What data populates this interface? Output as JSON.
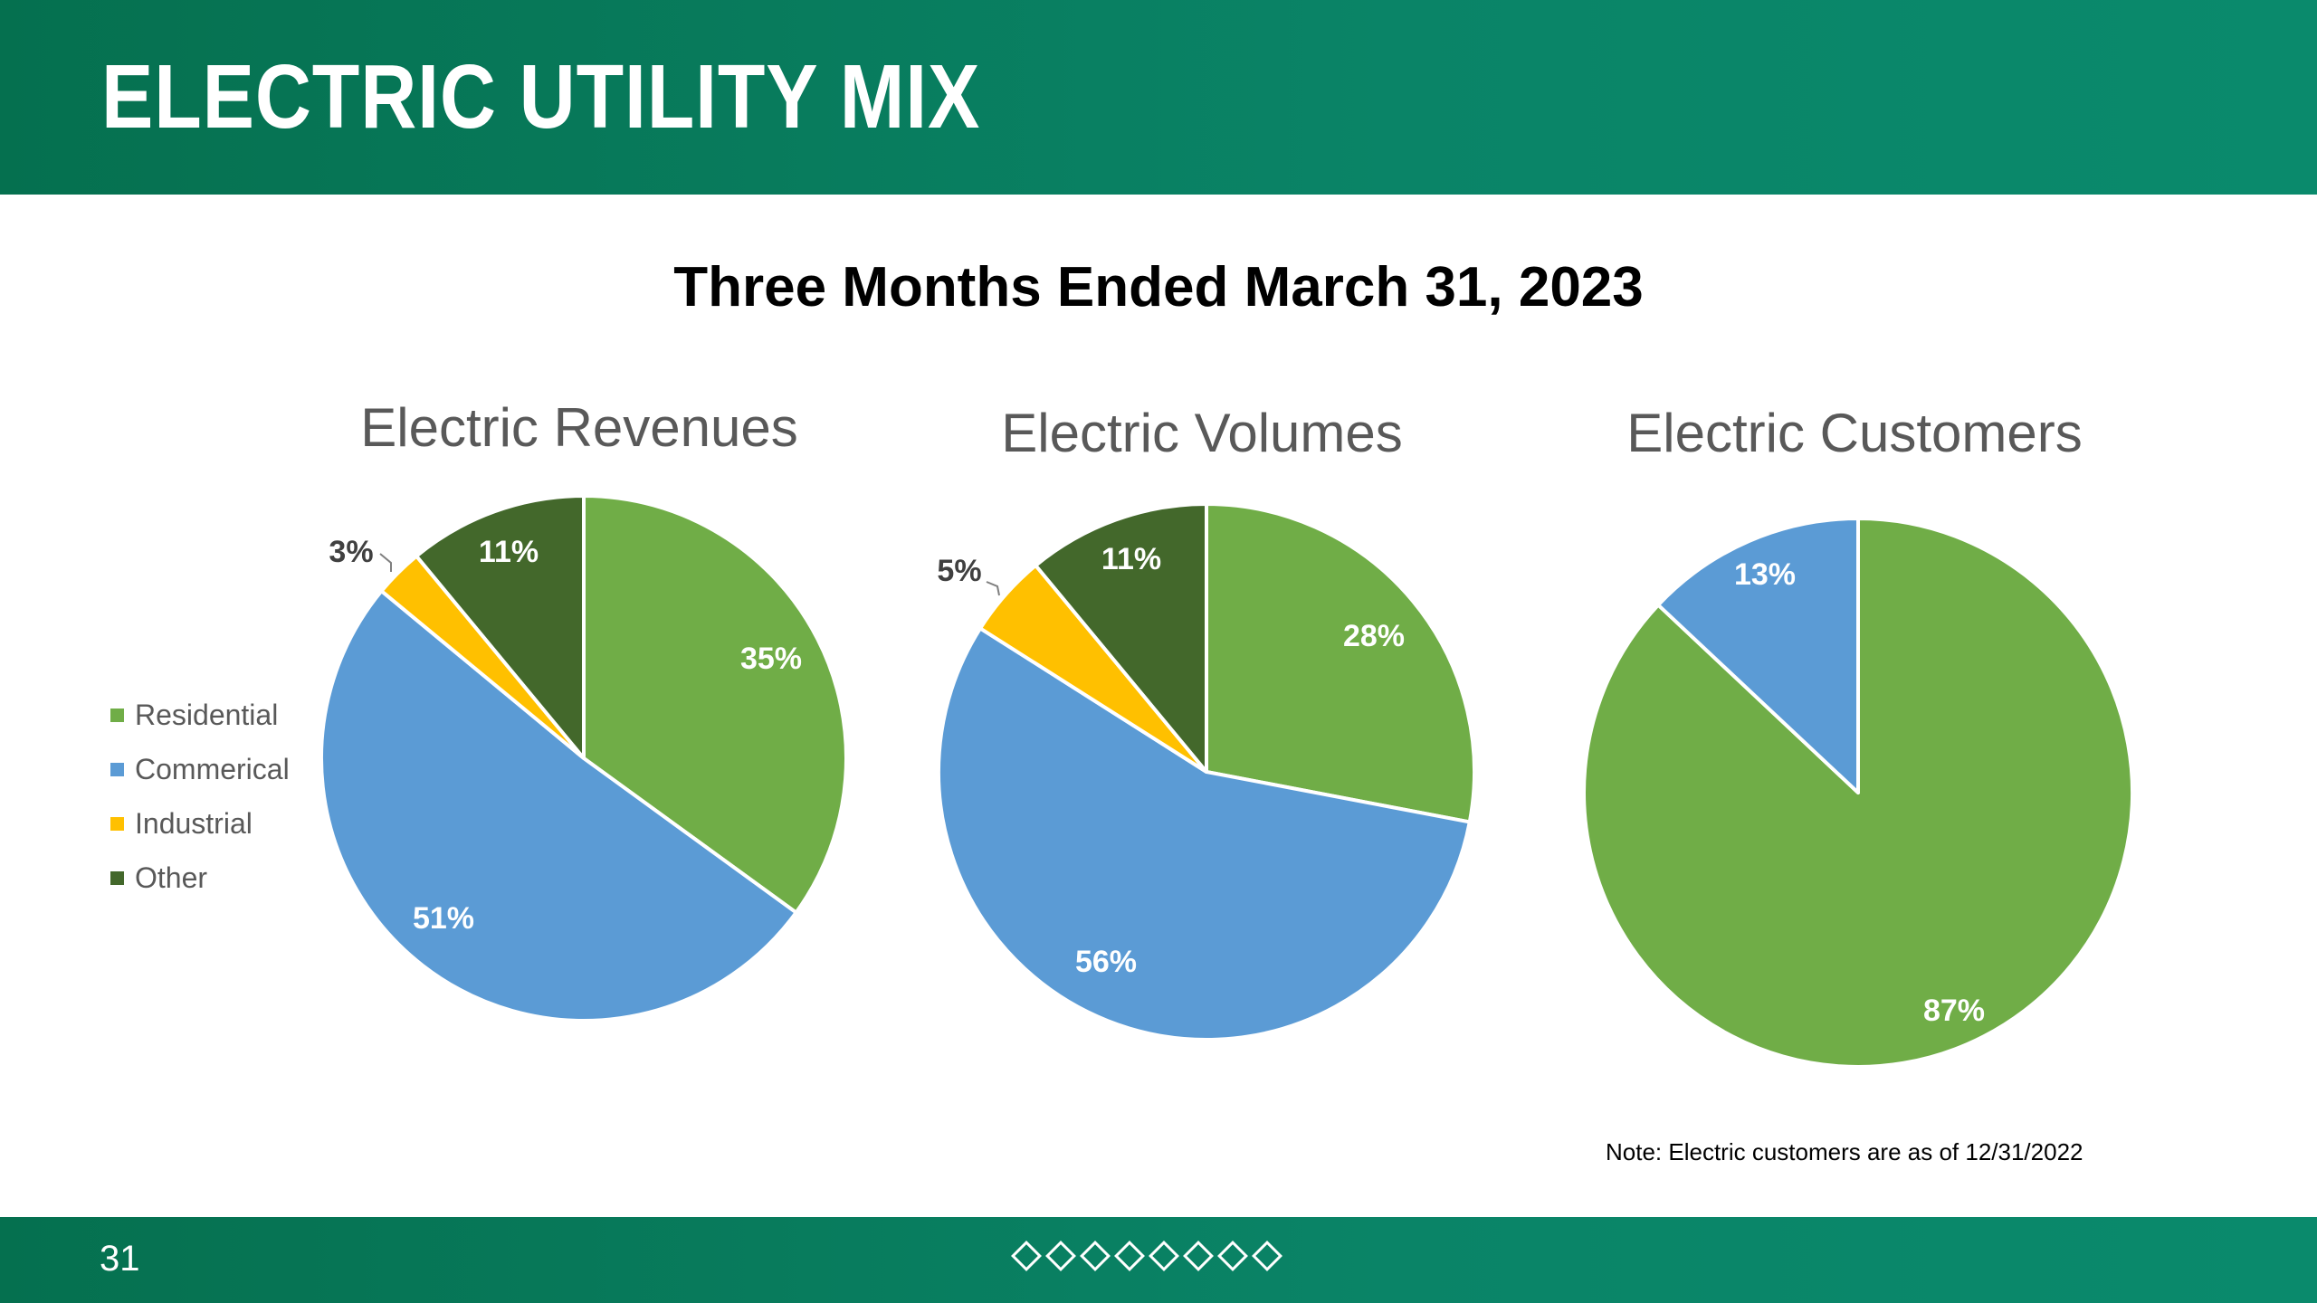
{
  "header": {
    "title": "ELECTRIC UTILITY MIX"
  },
  "subtitle": "Three Months Ended March 31, 2023",
  "legend": [
    {
      "label": "Residential",
      "color": "#70ad47"
    },
    {
      "label": "Commerical",
      "color": "#5b9bd5"
    },
    {
      "label": "Industrial",
      "color": "#ffc000"
    },
    {
      "label": "Other",
      "color": "#43682b"
    }
  ],
  "chart_data": [
    {
      "type": "pie",
      "title": "Electric Revenues",
      "categories": [
        "Residential",
        "Commerical",
        "Industrial",
        "Other"
      ],
      "values": [
        35,
        51,
        3,
        11
      ],
      "labels": [
        "35%",
        "51%",
        "3%",
        "11%"
      ]
    },
    {
      "type": "pie",
      "title": "Electric Volumes",
      "categories": [
        "Residential",
        "Commerical",
        "Industrial",
        "Other"
      ],
      "values": [
        28,
        56,
        5,
        11
      ],
      "labels": [
        "28%",
        "56%",
        "5%",
        "11%"
      ]
    },
    {
      "type": "pie",
      "title": "Electric Customers",
      "categories": [
        "Residential",
        "Commerical"
      ],
      "values": [
        87,
        13
      ],
      "labels": [
        "87%",
        "13%"
      ]
    }
  ],
  "note": "Note: Electric customers are as of 12/31/2022",
  "footer": {
    "page_number": "31",
    "diamond_count": 8
  }
}
